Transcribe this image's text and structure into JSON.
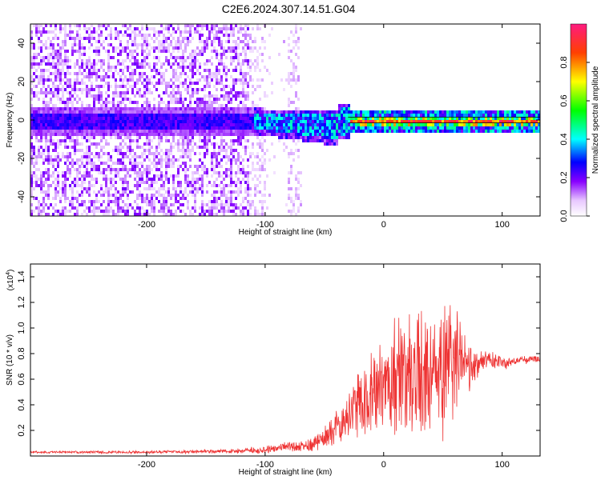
{
  "title": "C2E6.2024.307.14.51.G04",
  "chart_data": [
    {
      "type": "heatmap",
      "xlabel": "Height of straight line (km)",
      "ylabel": "Frequency (Hz)",
      "xlim": [
        -298,
        132
      ],
      "ylim": [
        -50,
        50
      ],
      "xticks": [
        -200,
        -100,
        0,
        100
      ],
      "yticks": [
        -40,
        -20,
        0,
        20,
        40
      ],
      "colorbar": {
        "label": "Normalized spectral amplitude",
        "range": [
          0,
          1
        ],
        "ticks": [
          "0.0",
          "0.2",
          "0.4",
          "0.6",
          "0.8"
        ],
        "tick_values": [
          0.0,
          0.2,
          0.4,
          0.6,
          0.8
        ]
      },
      "features": {
        "noise_background_x": [
          -298,
          -115
        ],
        "noise_sparse_x": [
          -115,
          -70
        ],
        "center_band_y": 0,
        "high_amplitude_x": [
          -30,
          132
        ],
        "reference_line_y": [
          -1.5,
          1.5
        ]
      }
    },
    {
      "type": "line",
      "xlabel": "Height of straight line (km)",
      "ylabel": "SNR (10 * v/v)",
      "y_multiplier": "(x10",
      "y_multiplier_exp": "4",
      "xlim": [
        -298,
        132
      ],
      "ylim": [
        0,
        1.5
      ],
      "xticks": [
        -200,
        -100,
        0,
        100
      ],
      "yticks": [
        "0.2",
        "0.4",
        "0.6",
        "0.8",
        "1.0",
        "1.2",
        "1.4"
      ],
      "ytick_values": [
        0.2,
        0.4,
        0.6,
        0.8,
        1.0,
        1.2,
        1.4
      ],
      "color": "#ee3333",
      "envelope": {
        "x": [
          -298,
          -200,
          -150,
          -120,
          -100,
          -80,
          -70,
          -60,
          -50,
          -40,
          -30,
          -20,
          -10,
          0,
          10,
          20,
          30,
          40,
          50,
          55,
          60,
          70,
          80,
          90,
          100,
          110,
          120,
          132
        ],
        "mean": [
          0.03,
          0.03,
          0.035,
          0.04,
          0.05,
          0.08,
          0.07,
          0.09,
          0.14,
          0.22,
          0.3,
          0.4,
          0.48,
          0.52,
          0.58,
          0.62,
          0.66,
          0.68,
          0.7,
          0.7,
          0.7,
          0.72,
          0.74,
          0.74,
          0.73,
          0.74,
          0.75,
          0.76
        ],
        "amp": [
          0.01,
          0.012,
          0.015,
          0.02,
          0.03,
          0.04,
          0.05,
          0.06,
          0.1,
          0.15,
          0.2,
          0.28,
          0.35,
          0.4,
          0.48,
          0.52,
          0.55,
          0.55,
          0.55,
          0.58,
          0.45,
          0.25,
          0.12,
          0.08,
          0.06,
          0.04,
          0.03,
          0.03
        ]
      }
    }
  ]
}
